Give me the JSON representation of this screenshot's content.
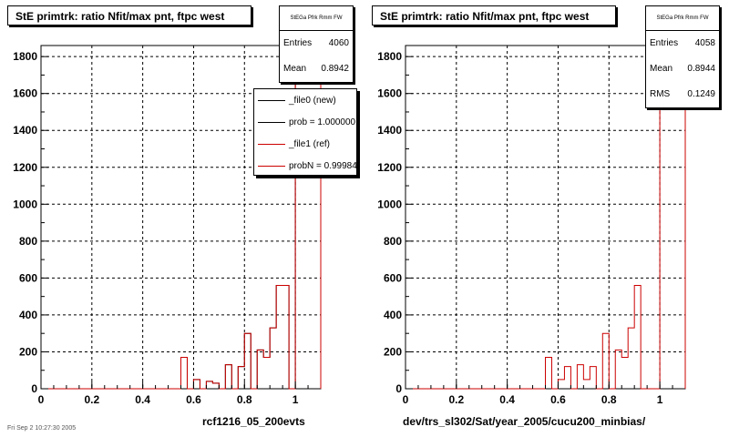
{
  "chart_data": [
    {
      "type": "bar",
      "title": "StE primtrk: ratio Nfit/max pnt, ftpc west",
      "xlabel": "rcf1216_05_200evts",
      "ylabel": "",
      "xlim": [
        0,
        1.1
      ],
      "ylim": [
        0,
        1860
      ],
      "xticks": [
        0,
        0.2,
        0.4,
        0.6,
        0.8,
        1
      ],
      "xtick_labels": [
        "0",
        "0.2",
        "0.4",
        "0.6",
        "0.8",
        "1"
      ],
      "yticks": [
        0,
        200,
        400,
        600,
        800,
        1000,
        1200,
        1400,
        1600,
        1800
      ],
      "ytick_labels": [
        "0",
        "200",
        "400",
        "600",
        "800",
        "1000",
        "1200",
        "1400",
        "1600",
        "1800"
      ],
      "grid": true,
      "bin_edges": [
        0,
        0.55,
        0.575,
        0.6,
        0.625,
        0.65,
        0.675,
        0.7,
        0.725,
        0.75,
        0.775,
        0.8,
        0.825,
        0.85,
        0.875,
        0.9,
        0.925,
        0.975,
        1.0,
        1.1
      ],
      "series": [
        {
          "name": "_file0 (new)",
          "color": "#000000",
          "values": [
            0,
            170,
            0,
            50,
            0,
            40,
            30,
            0,
            130,
            0,
            120,
            300,
            0,
            210,
            170,
            330,
            560,
            0,
            1780
          ]
        },
        {
          "name": "_file1 (ref)",
          "color": "#cc0000",
          "values": [
            0,
            170,
            0,
            50,
            0,
            40,
            30,
            0,
            130,
            0,
            120,
            300,
            0,
            210,
            170,
            330,
            560,
            0,
            1780
          ]
        }
      ],
      "stats": {
        "name": "StEGa Pfrk Rmm FW",
        "entries_label": "Entries",
        "entries": "4060",
        "mean_label": "Mean",
        "mean": "0.8942"
      },
      "legend": {
        "placement": "top-right",
        "entries": [
          {
            "label": "_file0 (new)",
            "color": "#000000"
          },
          {
            "label": "prob = 1.000000",
            "color": "#000000"
          },
          {
            "label": "_file1 (ref)",
            "color": "#cc0000"
          },
          {
            "label": "probN = 0.99984",
            "color": "#cc0000"
          }
        ]
      }
    },
    {
      "type": "bar",
      "title": "StE primtrk: ratio Nfit/max pnt, ftpc west",
      "xlabel": "dev/trs_sl302/Sat/year_2005/cucu200_minbias/",
      "ylabel": "",
      "xlim": [
        0,
        1.1
      ],
      "ylim": [
        0,
        1860
      ],
      "xticks": [
        0,
        0.2,
        0.4,
        0.6,
        0.8,
        1
      ],
      "xtick_labels": [
        "0",
        "0.2",
        "0.4",
        "0.6",
        "0.8",
        "1"
      ],
      "yticks": [
        0,
        200,
        400,
        600,
        800,
        1000,
        1200,
        1400,
        1600,
        1800
      ],
      "ytick_labels": [
        "0",
        "200",
        "400",
        "600",
        "800",
        "1000",
        "1200",
        "1400",
        "1600",
        "1800"
      ],
      "grid": true,
      "bin_edges": [
        0,
        0.55,
        0.575,
        0.6,
        0.625,
        0.65,
        0.675,
        0.7,
        0.725,
        0.75,
        0.775,
        0.8,
        0.825,
        0.85,
        0.875,
        0.9,
        0.925,
        0.975,
        1.0,
        1.1
      ],
      "series": [
        {
          "name": "",
          "color": "#cc0000",
          "values": [
            0,
            170,
            0,
            50,
            120,
            0,
            130,
            50,
            120,
            0,
            300,
            0,
            210,
            170,
            330,
            560,
            0,
            0,
            1780
          ]
        }
      ],
      "stats": {
        "name": "StEGa Pfrk Rmm FW",
        "entries_label": "Entries",
        "entries": "4058",
        "mean_label": "Mean",
        "mean": "0.8944",
        "rms_label": "RMS",
        "rms": "0.1249"
      }
    }
  ],
  "footer": {
    "corner_text": "Fri Sep 2 10:27:30 2005"
  }
}
